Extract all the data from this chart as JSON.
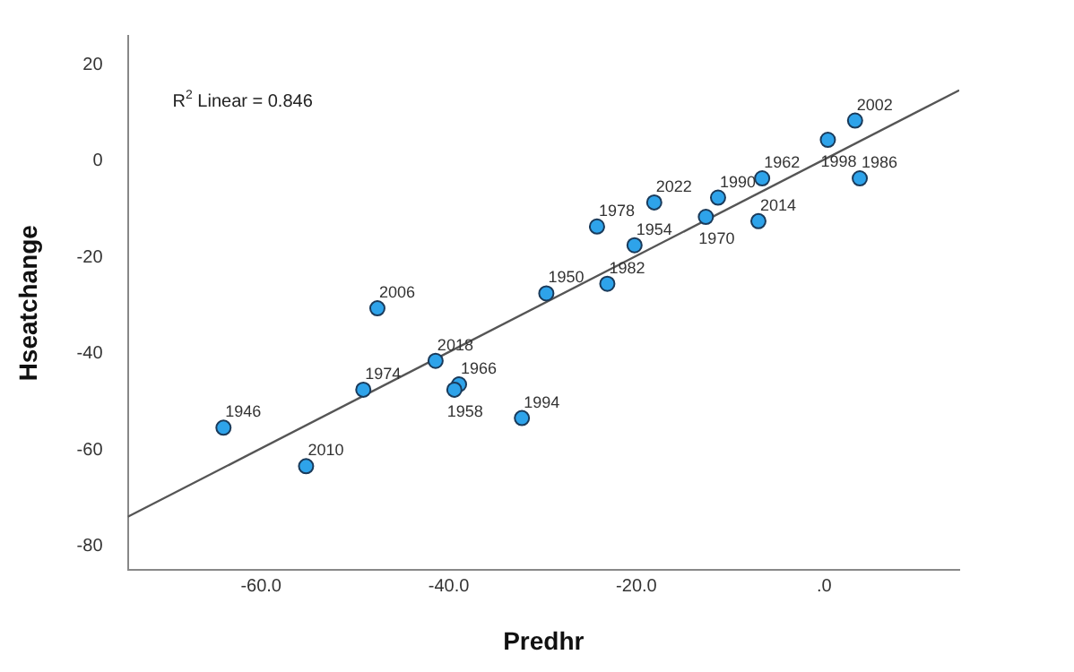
{
  "chart_data": {
    "type": "scatter",
    "xlabel": "Predhr",
    "ylabel": "Hseatchange",
    "xlim": [
      -74.2,
      14.4
    ],
    "ylim": [
      -85,
      26
    ],
    "xticks": [
      {
        "value": -60,
        "label": "-60.0"
      },
      {
        "value": -40,
        "label": "-40.0"
      },
      {
        "value": -20,
        "label": "-20.0"
      },
      {
        "value": 0,
        "label": ".0"
      }
    ],
    "yticks": [
      -80,
      -60,
      -40,
      -20,
      0,
      20
    ],
    "grid": false,
    "legend": false,
    "marker": "circle",
    "series": [
      {
        "color": "#2ea3ea",
        "x": [
          3.3,
          0.4,
          3.8,
          -6.6,
          -11.3,
          -18.1,
          -12.6,
          -7.0,
          -24.2,
          -20.2,
          -23.1,
          -29.6,
          -47.6,
          -41.4,
          -49.1,
          -38.9,
          -39.4,
          -32.2,
          -64.0,
          -55.2
        ],
        "values": [
          8.4,
          4.4,
          -3.6,
          -3.6,
          -7.6,
          -8.6,
          -11.6,
          -12.5,
          -13.6,
          -17.5,
          -25.5,
          -27.5,
          -30.6,
          -41.5,
          -47.5,
          -46.4,
          -47.5,
          -53.4,
          -55.4,
          -63.4
        ]
      },
      {
        "type": "line",
        "color": "#555555",
        "x": [
          -74.2,
          14.4
        ],
        "values": [
          -73.9,
          14.7
        ],
        "marker": "none"
      }
    ],
    "annotations": [
      "R$^{2}$ Linear = 0.846",
      {
        "text": "2002",
        "x": 3.3,
        "y": 8.4
      },
      {
        "text": "1998",
        "x": 0.4,
        "y": 4.4
      },
      {
        "text": "1986",
        "x": 3.8,
        "y": -3.6
      },
      {
        "text": "1962",
        "x": -6.6,
        "y": -3.6
      },
      {
        "text": "1990",
        "x": -11.3,
        "y": -7.6
      },
      {
        "text": "2022",
        "x": -18.1,
        "y": -8.6
      },
      {
        "text": "1970",
        "x": -12.6,
        "y": -11.6
      },
      {
        "text": "2014",
        "x": -7.0,
        "y": -12.5
      },
      {
        "text": "1978",
        "x": -24.2,
        "y": -13.6
      },
      {
        "text": "1954",
        "x": -20.2,
        "y": -17.5
      },
      {
        "text": "1982",
        "x": -23.1,
        "y": -25.5
      },
      {
        "text": "1950",
        "x": -29.6,
        "y": -27.5
      },
      {
        "text": "2006",
        "x": -47.6,
        "y": -30.6
      },
      {
        "text": "2018",
        "x": -41.4,
        "y": -41.5
      },
      {
        "text": "1974",
        "x": -49.1,
        "y": -47.5
      },
      {
        "text": "1966",
        "x": -38.9,
        "y": -46.4
      },
      {
        "text": "1958",
        "x": -39.4,
        "y": -47.5
      },
      {
        "text": "1994",
        "x": -32.2,
        "y": -53.4
      },
      {
        "text": "1946",
        "x": -64.0,
        "y": -55.4
      },
      {
        "text": "2010",
        "x": -55.2,
        "y": -63.4
      }
    ]
  }
}
